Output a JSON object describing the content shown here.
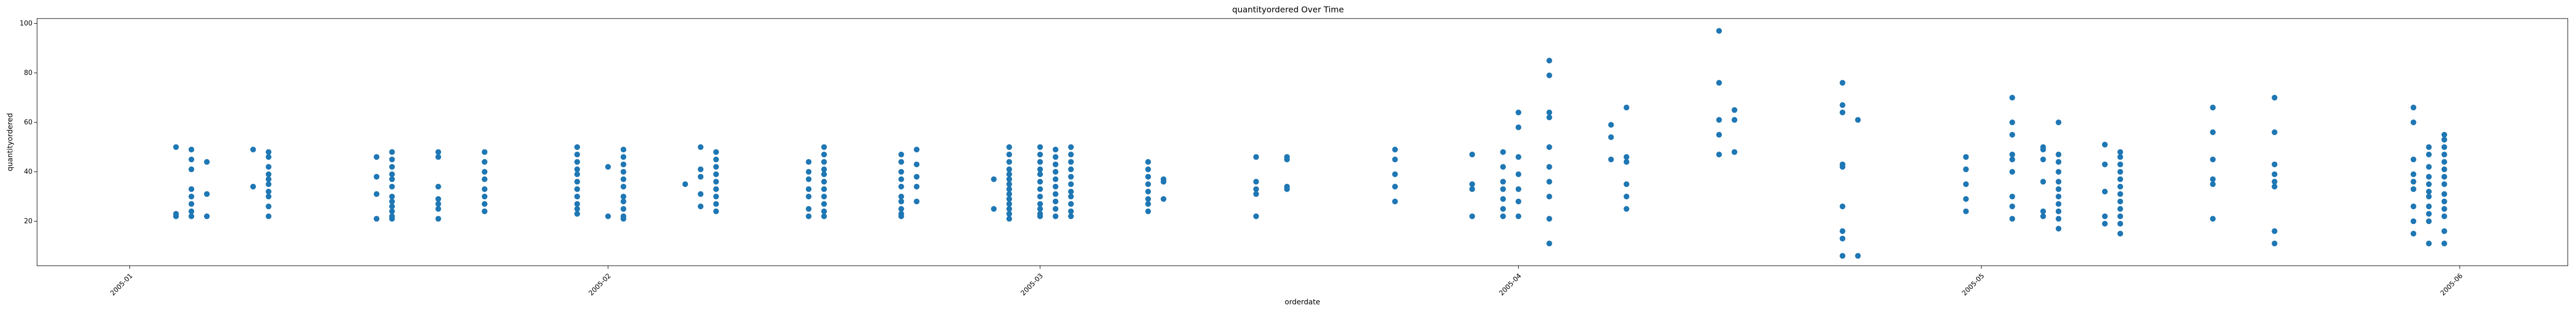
{
  "chart_data": {
    "type": "scatter",
    "title": "quantityordered Over Time",
    "xlabel": "orderdate",
    "ylabel": "quantityordered",
    "xlim": [
      "2004-12-26",
      "2005-06-08"
    ],
    "ylim": [
      2,
      102
    ],
    "xticks": [
      {
        "date": "2005-01-01",
        "label": "2005-01"
      },
      {
        "date": "2005-02-01",
        "label": "2005-02"
      },
      {
        "date": "2005-03-01",
        "label": "2005-03"
      },
      {
        "date": "2005-04-01",
        "label": "2005-04"
      },
      {
        "date": "2005-05-01",
        "label": "2005-05"
      },
      {
        "date": "2005-06-01",
        "label": "2005-06"
      }
    ],
    "yticks": [
      20,
      40,
      60,
      80,
      100
    ],
    "grid": false,
    "legend": "none",
    "color": "#1f77b4",
    "points": [
      {
        "x": "2005-01-04",
        "y": [
          50,
          23,
          22
        ]
      },
      {
        "x": "2005-01-05",
        "y": [
          49,
          45,
          41,
          33,
          30,
          27,
          24,
          22
        ]
      },
      {
        "x": "2005-01-06",
        "y": [
          44,
          31,
          22
        ]
      },
      {
        "x": "2005-01-09",
        "y": [
          49,
          34
        ]
      },
      {
        "x": "2005-01-10",
        "y": [
          48,
          46,
          42,
          39,
          37,
          35,
          32,
          30,
          26,
          22
        ]
      },
      {
        "x": "2005-01-17",
        "y": [
          46,
          38,
          31,
          21
        ]
      },
      {
        "x": "2005-01-18",
        "y": [
          48,
          45,
          42,
          39,
          37,
          34,
          30,
          28,
          26,
          24,
          22,
          21
        ]
      },
      {
        "x": "2005-01-21",
        "y": [
          48,
          46,
          34,
          29,
          27,
          25,
          21
        ]
      },
      {
        "x": "2005-01-24",
        "y": [
          48,
          44,
          40,
          37,
          33,
          30,
          27,
          24
        ]
      },
      {
        "x": "2005-01-30",
        "y": [
          50,
          47,
          44,
          41,
          39,
          36,
          33,
          30,
          27,
          25,
          23
        ]
      },
      {
        "x": "2005-02-01",
        "y": [
          42,
          22
        ]
      },
      {
        "x": "2005-02-02",
        "y": [
          49,
          46,
          43,
          40,
          37,
          34,
          30,
          28,
          25,
          22,
          21
        ]
      },
      {
        "x": "2005-02-06",
        "y": [
          35
        ]
      },
      {
        "x": "2005-02-07",
        "y": [
          50,
          41,
          38,
          31,
          26
        ]
      },
      {
        "x": "2005-02-08",
        "y": [
          48,
          45,
          42,
          39,
          36,
          33,
          30,
          27,
          24
        ]
      },
      {
        "x": "2005-02-14",
        "y": [
          44,
          40,
          37,
          33,
          30,
          25,
          22
        ]
      },
      {
        "x": "2005-02-15",
        "y": [
          50,
          47,
          44,
          41,
          39,
          36,
          33,
          30,
          27,
          24,
          22
        ]
      },
      {
        "x": "2005-02-20",
        "y": [
          47,
          44,
          40,
          37,
          34,
          30,
          28,
          25,
          23,
          22
        ]
      },
      {
        "x": "2005-02-21",
        "y": [
          49,
          43,
          38,
          34,
          28
        ]
      },
      {
        "x": "2005-02-26",
        "y": [
          37,
          25
        ]
      },
      {
        "x": "2005-02-27",
        "y": [
          50,
          47,
          44,
          41,
          39,
          37,
          35,
          33,
          31,
          29,
          27,
          25,
          23,
          21
        ]
      },
      {
        "x": "2005-03-01",
        "y": [
          50,
          47,
          44,
          41,
          39,
          36,
          33,
          30,
          27,
          25,
          23,
          22
        ]
      },
      {
        "x": "2005-03-02",
        "y": [
          49,
          46,
          43,
          40,
          37,
          34,
          31,
          28,
          25,
          22
        ]
      },
      {
        "x": "2005-03-03",
        "y": [
          50,
          47,
          44,
          41,
          38,
          35,
          32,
          30,
          27,
          24,
          22
        ]
      },
      {
        "x": "2005-03-08",
        "y": [
          44,
          41,
          38,
          35,
          32,
          29,
          27,
          24
        ]
      },
      {
        "x": "2005-03-09",
        "y": [
          37,
          36,
          29
        ]
      },
      {
        "x": "2005-03-15",
        "y": [
          46,
          36,
          33,
          31,
          22
        ]
      },
      {
        "x": "2005-03-17",
        "y": [
          46,
          45,
          34,
          33
        ]
      },
      {
        "x": "2005-03-24",
        "y": [
          49,
          45,
          39,
          34,
          28
        ]
      },
      {
        "x": "2005-03-29",
        "y": [
          47,
          35,
          33,
          22
        ]
      },
      {
        "x": "2005-03-31",
        "y": [
          48,
          42,
          36,
          33,
          29,
          25,
          22
        ]
      },
      {
        "x": "2005-04-01",
        "y": [
          64,
          58,
          46,
          39,
          33,
          28,
          22
        ]
      },
      {
        "x": "2005-04-03",
        "y": [
          85,
          79,
          64,
          62,
          50,
          42,
          36,
          30,
          21,
          11
        ]
      },
      {
        "x": "2005-04-07",
        "y": [
          59,
          54,
          45
        ]
      },
      {
        "x": "2005-04-08",
        "y": [
          66,
          46,
          44,
          35,
          30,
          25
        ]
      },
      {
        "x": "2005-04-14",
        "y": [
          97,
          76,
          61,
          55,
          47
        ]
      },
      {
        "x": "2005-04-15",
        "y": [
          65,
          61,
          48
        ]
      },
      {
        "x": "2005-04-22",
        "y": [
          76,
          67,
          64,
          43,
          42,
          26,
          16,
          13,
          6
        ]
      },
      {
        "x": "2005-04-23",
        "y": [
          61,
          6
        ]
      },
      {
        "x": "2005-04-30",
        "y": [
          46,
          41,
          35,
          29,
          24
        ]
      },
      {
        "x": "2005-05-03",
        "y": [
          70,
          60,
          55,
          47,
          45,
          40,
          30,
          26,
          21
        ]
      },
      {
        "x": "2005-05-05",
        "y": [
          50,
          49,
          45,
          36,
          24,
          22
        ]
      },
      {
        "x": "2005-05-06",
        "y": [
          60,
          47,
          44,
          40,
          36,
          33,
          30,
          27,
          24,
          21,
          17
        ]
      },
      {
        "x": "2005-05-09",
        "y": [
          51,
          43,
          32,
          22,
          19
        ]
      },
      {
        "x": "2005-05-10",
        "y": [
          48,
          46,
          43,
          40,
          37,
          34,
          31,
          28,
          25,
          22,
          19,
          15
        ]
      },
      {
        "x": "2005-05-16",
        "y": [
          66,
          56,
          45,
          37,
          35,
          21
        ]
      },
      {
        "x": "2005-05-20",
        "y": [
          70,
          56,
          43,
          39,
          36,
          34,
          16,
          11
        ]
      },
      {
        "x": "2005-05-29",
        "y": [
          66,
          60,
          45,
          39,
          36,
          33,
          26,
          20,
          15
        ]
      },
      {
        "x": "2005-05-30",
        "y": [
          50,
          47,
          42,
          38,
          35,
          32,
          30,
          26,
          23,
          20,
          11
        ]
      },
      {
        "x": "2005-05-31",
        "y": [
          55,
          53,
          50,
          47,
          44,
          41,
          38,
          35,
          31,
          28,
          25,
          22,
          16,
          11
        ]
      }
    ]
  }
}
